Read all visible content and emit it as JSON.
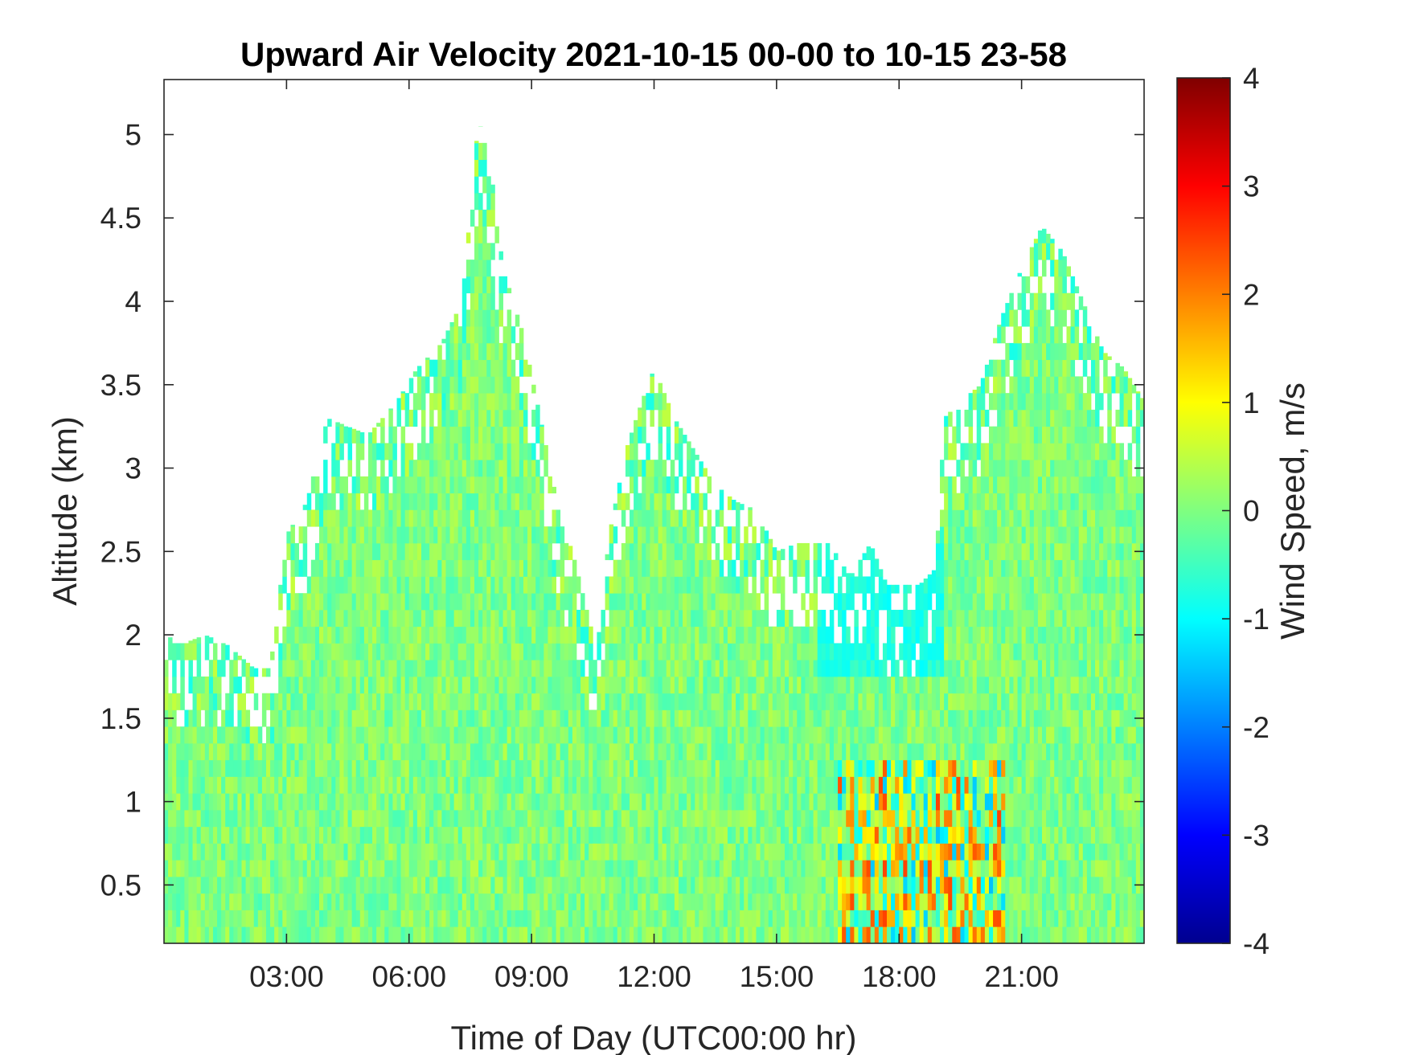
{
  "chart_data": {
    "type": "heatmap",
    "title": "Upward Air Velocity 2021-10-15 00-00 to 10-15 23-58",
    "xlabel": "Time of Day (UTC00:00 hr)",
    "ylabel": "Altitude (km)",
    "xlim_hours": [
      0,
      24
    ],
    "ylim_km": [
      0.15,
      5.33
    ],
    "x_ticks": [
      {
        "hour": 3,
        "label": "03:00"
      },
      {
        "hour": 6,
        "label": "06:00"
      },
      {
        "hour": 9,
        "label": "09:00"
      },
      {
        "hour": 12,
        "label": "12:00"
      },
      {
        "hour": 15,
        "label": "15:00"
      },
      {
        "hour": 18,
        "label": "18:00"
      },
      {
        "hour": 21,
        "label": "21:00"
      }
    ],
    "y_ticks": [
      {
        "km": 0.5,
        "label": "0.5"
      },
      {
        "km": 1,
        "label": "1"
      },
      {
        "km": 1.5,
        "label": "1.5"
      },
      {
        "km": 2,
        "label": "2"
      },
      {
        "km": 2.5,
        "label": "2.5"
      },
      {
        "km": 3,
        "label": "3"
      },
      {
        "km": 3.5,
        "label": "3.5"
      },
      {
        "km": 4,
        "label": "4"
      },
      {
        "km": 4.5,
        "label": "4.5"
      },
      {
        "km": 5,
        "label": "5"
      }
    ],
    "colorbar": {
      "label": "Wind Speed, m/s",
      "range": [
        -4,
        4
      ],
      "colormap": "jet",
      "ticks": [
        "4",
        "3",
        "2",
        "1",
        "0",
        "-1",
        "-2",
        "-3",
        "-4"
      ],
      "tick_values": [
        4,
        3,
        2,
        1,
        0,
        -1,
        -2,
        -3,
        -4
      ]
    },
    "data_top_altitude_km": [
      {
        "hour": 0.0,
        "km": 2.0
      },
      {
        "hour": 0.5,
        "km": 1.95
      },
      {
        "hour": 1.0,
        "km": 2.0
      },
      {
        "hour": 1.5,
        "km": 1.95
      },
      {
        "hour": 2.2,
        "km": 1.8
      },
      {
        "hour": 2.6,
        "km": 1.8
      },
      {
        "hour": 2.8,
        "km": 2.2
      },
      {
        "hour": 3.0,
        "km": 2.6
      },
      {
        "hour": 3.5,
        "km": 2.8
      },
      {
        "hour": 4.0,
        "km": 3.3
      },
      {
        "hour": 5.0,
        "km": 3.2
      },
      {
        "hour": 5.7,
        "km": 3.4
      },
      {
        "hour": 6.2,
        "km": 3.6
      },
      {
        "hour": 6.8,
        "km": 3.75
      },
      {
        "hour": 7.3,
        "km": 4.0
      },
      {
        "hour": 7.7,
        "km": 5.1
      },
      {
        "hour": 8.0,
        "km": 4.8
      },
      {
        "hour": 8.3,
        "km": 4.2
      },
      {
        "hour": 8.8,
        "km": 3.8
      },
      {
        "hour": 9.3,
        "km": 3.2
      },
      {
        "hour": 9.7,
        "km": 2.7
      },
      {
        "hour": 10.0,
        "km": 2.5
      },
      {
        "hour": 10.3,
        "km": 2.2
      },
      {
        "hour": 10.6,
        "km": 1.9
      },
      {
        "hour": 10.9,
        "km": 2.6
      },
      {
        "hour": 11.3,
        "km": 3.1
      },
      {
        "hour": 11.7,
        "km": 3.4
      },
      {
        "hour": 12.0,
        "km": 3.6
      },
      {
        "hour": 12.5,
        "km": 3.3
      },
      {
        "hour": 13.0,
        "km": 3.1
      },
      {
        "hour": 13.5,
        "km": 2.9
      },
      {
        "hour": 14.0,
        "km": 2.8
      },
      {
        "hour": 14.5,
        "km": 2.75
      },
      {
        "hour": 15.0,
        "km": 2.5
      },
      {
        "hour": 15.5,
        "km": 2.55
      },
      {
        "hour": 16.3,
        "km": 2.55
      },
      {
        "hour": 16.8,
        "km": 2.35
      },
      {
        "hour": 17.3,
        "km": 2.55
      },
      {
        "hour": 17.7,
        "km": 2.3
      },
      {
        "hour": 18.5,
        "km": 2.3
      },
      {
        "hour": 18.9,
        "km": 2.4
      },
      {
        "hour": 19.1,
        "km": 3.3
      },
      {
        "hour": 19.5,
        "km": 3.4
      },
      {
        "hour": 20.0,
        "km": 3.5
      },
      {
        "hour": 20.5,
        "km": 3.9
      },
      {
        "hour": 21.0,
        "km": 4.2
      },
      {
        "hour": 21.5,
        "km": 4.45
      },
      {
        "hour": 22.0,
        "km": 4.3
      },
      {
        "hour": 22.5,
        "km": 4.0
      },
      {
        "hour": 23.0,
        "km": 3.7
      },
      {
        "hour": 23.5,
        "km": 3.6
      },
      {
        "hour": 24.0,
        "km": 3.4
      }
    ],
    "typical_value_m_s": 0.0,
    "notable_regions": [
      {
        "hours": [
          16.5,
          20.5
        ],
        "km": [
          0.15,
          1.2
        ],
        "values_m_s": [
          -1.5,
          2.5
        ]
      },
      {
        "hours": [
          16.0,
          19.0
        ],
        "km": [
          1.8,
          2.6
        ],
        "values_m_s": [
          -1,
          -0.5
        ]
      }
    ]
  }
}
